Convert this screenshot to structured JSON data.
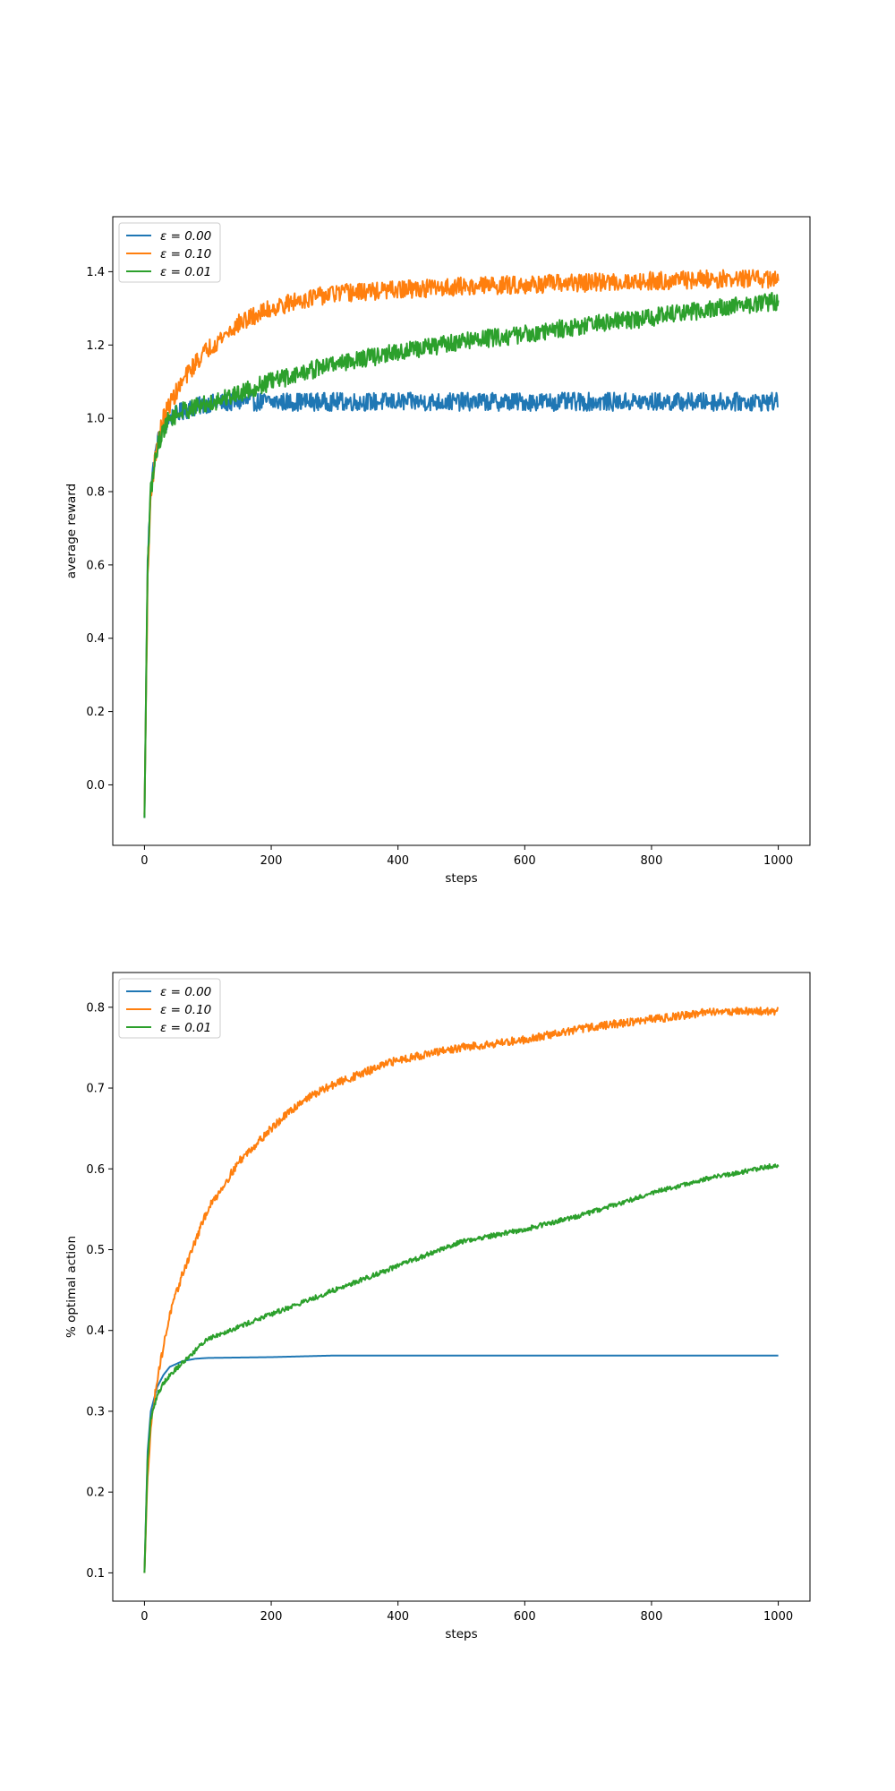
{
  "chart_data": [
    {
      "type": "line",
      "title": "",
      "xlabel": "steps",
      "ylabel": "average reward",
      "xlim": [
        -50,
        1050
      ],
      "ylim": [
        -0.165,
        1.55
      ],
      "xticks": [
        0,
        200,
        400,
        600,
        800,
        1000
      ],
      "yticks": [
        0.0,
        0.2,
        0.4,
        0.6,
        0.8,
        1.0,
        1.2,
        1.4
      ],
      "ytick_decimals": 1,
      "legend": "upper-left",
      "noise": [
        0.025,
        0.025,
        0.025
      ],
      "series": [
        {
          "name": "ε = 0.00",
          "color": "#1f77b4",
          "x": [
            0,
            5,
            10,
            20,
            30,
            40,
            60,
            80,
            100,
            150,
            200,
            300,
            400,
            500,
            600,
            700,
            800,
            900,
            1000
          ],
          "y": [
            -0.09,
            0.6,
            0.82,
            0.93,
            0.98,
            1.0,
            1.02,
            1.03,
            1.04,
            1.045,
            1.045,
            1.045,
            1.045,
            1.045,
            1.045,
            1.045,
            1.045,
            1.045,
            1.045
          ]
        },
        {
          "name": "ε = 0.10",
          "color": "#ff7f0e",
          "x": [
            0,
            5,
            10,
            20,
            30,
            40,
            60,
            80,
            100,
            150,
            200,
            250,
            300,
            400,
            500,
            600,
            700,
            800,
            900,
            1000
          ],
          "y": [
            -0.08,
            0.55,
            0.8,
            0.93,
            1.0,
            1.04,
            1.1,
            1.15,
            1.19,
            1.26,
            1.3,
            1.325,
            1.34,
            1.35,
            1.36,
            1.365,
            1.37,
            1.375,
            1.38,
            1.38
          ]
        },
        {
          "name": "ε = 0.01",
          "color": "#2ca02c",
          "x": [
            0,
            5,
            10,
            20,
            30,
            40,
            60,
            80,
            100,
            150,
            200,
            300,
            400,
            500,
            600,
            700,
            800,
            900,
            1000
          ],
          "y": [
            -0.09,
            0.6,
            0.8,
            0.92,
            0.97,
            1.0,
            1.02,
            1.03,
            1.04,
            1.07,
            1.1,
            1.15,
            1.18,
            1.21,
            1.23,
            1.255,
            1.275,
            1.3,
            1.32
          ]
        }
      ]
    },
    {
      "type": "line",
      "title": "",
      "xlabel": "steps",
      "ylabel": "% optimal action",
      "xlim": [
        -50,
        1050
      ],
      "ylim": [
        0.065,
        0.843
      ],
      "xticks": [
        0,
        200,
        400,
        600,
        800,
        1000
      ],
      "yticks": [
        0.1,
        0.2,
        0.3,
        0.4,
        0.5,
        0.6,
        0.7,
        0.8
      ],
      "ytick_decimals": 1,
      "legend": "upper-left",
      "noise": [
        0.0,
        0.005,
        0.003
      ],
      "series": [
        {
          "name": "ε = 0.00",
          "color": "#1f77b4",
          "x": [
            0,
            5,
            10,
            20,
            30,
            40,
            60,
            80,
            100,
            200,
            300,
            500,
            1000
          ],
          "y": [
            0.1,
            0.25,
            0.3,
            0.33,
            0.345,
            0.355,
            0.362,
            0.365,
            0.366,
            0.367,
            0.369,
            0.369,
            0.369
          ]
        },
        {
          "name": "ε = 0.10",
          "color": "#ff7f0e",
          "x": [
            0,
            5,
            10,
            20,
            30,
            40,
            60,
            80,
            100,
            150,
            200,
            250,
            300,
            400,
            500,
            600,
            700,
            800,
            900,
            1000
          ],
          "y": [
            0.1,
            0.22,
            0.28,
            0.34,
            0.38,
            0.42,
            0.47,
            0.51,
            0.55,
            0.61,
            0.65,
            0.685,
            0.705,
            0.735,
            0.75,
            0.76,
            0.775,
            0.785,
            0.795,
            0.795
          ]
        },
        {
          "name": "ε = 0.01",
          "color": "#2ca02c",
          "x": [
            0,
            5,
            10,
            20,
            30,
            40,
            60,
            80,
            100,
            150,
            200,
            300,
            400,
            500,
            600,
            700,
            800,
            900,
            1000
          ],
          "y": [
            0.1,
            0.24,
            0.29,
            0.32,
            0.335,
            0.345,
            0.36,
            0.375,
            0.39,
            0.405,
            0.42,
            0.45,
            0.48,
            0.51,
            0.525,
            0.545,
            0.57,
            0.59,
            0.605
          ]
        }
      ]
    }
  ]
}
